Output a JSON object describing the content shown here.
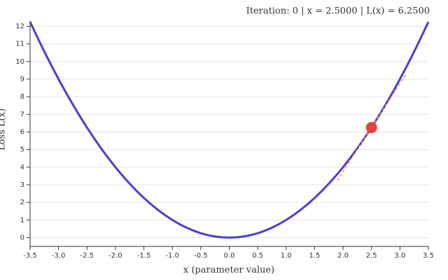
{
  "chart_data": {
    "type": "line",
    "title": "Iteration: 0 | x = 2.5000 | L(x) = 6.2500",
    "x_label": "x (parameter value)",
    "y_label": "Loss L(x)",
    "x": [
      -3.5,
      -3.25,
      -3,
      -2.75,
      -2.5,
      -2.25,
      -2,
      -1.75,
      -1.5,
      -1.25,
      -1,
      -0.75,
      -0.5,
      -0.25,
      0,
      0.25,
      0.5,
      0.75,
      1,
      1.25,
      1.5,
      1.75,
      2,
      2.25,
      2.5,
      2.75,
      3,
      3.25,
      3.5
    ],
    "series": [
      {
        "color": "#4b3fcf",
        "values": [
          12.25,
          10.5625,
          9,
          7.5625,
          6.25,
          5.0625,
          4,
          3.0625,
          2.25,
          1.5625,
          1,
          0.5625,
          0.25,
          0.0625,
          0,
          0.0625,
          0.25,
          0.5625,
          1,
          1.5625,
          2.25,
          3.0625,
          4,
          5.0625,
          6.25,
          7.5625,
          9,
          10.5625,
          12.25
        ]
      }
    ],
    "point": {
      "x": 2.5,
      "y": 6.25,
      "color": "#e8403f"
    },
    "tangent": {
      "x": [
        1.9,
        3.1
      ],
      "values": [
        3.25,
        9.25
      ],
      "color": "#f0a030",
      "dashed": true
    },
    "xlim": [
      -3.5,
      3.5
    ],
    "ylim": [
      -0.5,
      12.3
    ],
    "xticks": [
      -3.5,
      {
        "value": -3,
        "label": "-3.0"
      },
      -2.5,
      {
        "value": -2,
        "label": "-2.0"
      },
      -1.5,
      {
        "value": -1,
        "label": "-1.0"
      },
      -0.5,
      {
        "value": 0,
        "label": "0.0"
      },
      0.5,
      {
        "value": 1,
        "label": "1.0"
      },
      1.5,
      {
        "value": 2,
        "label": "2.0"
      },
      2.5,
      {
        "value": 3,
        "label": "3.0"
      },
      3.5
    ],
    "yticks": [
      0,
      1,
      2,
      3,
      4,
      5,
      6,
      7,
      8,
      9,
      10,
      11,
      12
    ],
    "grid": true
  }
}
